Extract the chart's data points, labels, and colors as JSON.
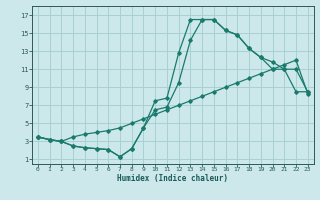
{
  "xlabel": "Humidex (Indice chaleur)",
  "background_color": "#cde8ea",
  "grid_color": "#a8d0d3",
  "line_color": "#1a7a6e",
  "xlim": [
    -0.5,
    23.5
  ],
  "ylim": [
    0.5,
    18
  ],
  "xticks": [
    0,
    1,
    2,
    3,
    4,
    5,
    6,
    7,
    8,
    9,
    10,
    11,
    12,
    13,
    14,
    15,
    16,
    17,
    18,
    19,
    20,
    21,
    22,
    23
  ],
  "yticks": [
    1,
    3,
    5,
    7,
    9,
    11,
    13,
    15,
    17
  ],
  "line1_x": [
    0,
    1,
    2,
    3,
    4,
    5,
    6,
    7,
    8,
    9,
    10,
    11,
    12,
    13,
    14,
    15,
    16,
    17,
    18,
    19,
    20,
    21,
    22,
    23
  ],
  "line1_y": [
    3.5,
    3.2,
    3.0,
    2.5,
    2.3,
    2.2,
    2.1,
    1.3,
    2.2,
    4.5,
    7.5,
    7.8,
    12.8,
    16.5,
    16.5,
    16.5,
    15.3,
    14.8,
    13.3,
    12.3,
    11.0,
    11.0,
    8.5,
    8.5
  ],
  "line2_x": [
    0,
    1,
    2,
    3,
    4,
    5,
    6,
    7,
    8,
    9,
    10,
    11,
    12,
    13,
    14,
    15,
    16,
    17,
    18,
    19,
    20,
    21,
    22,
    23
  ],
  "line2_y": [
    3.5,
    3.2,
    3.0,
    2.5,
    2.3,
    2.2,
    2.1,
    1.3,
    2.2,
    4.5,
    6.5,
    6.8,
    9.5,
    14.2,
    16.5,
    16.5,
    15.3,
    14.8,
    13.3,
    12.3,
    11.8,
    11.0,
    11.0,
    8.5
  ],
  "line3_x": [
    0,
    1,
    2,
    3,
    4,
    5,
    6,
    7,
    8,
    9,
    10,
    11,
    12,
    13,
    14,
    15,
    16,
    17,
    18,
    19,
    20,
    21,
    22,
    23
  ],
  "line3_y": [
    3.5,
    3.2,
    3.0,
    3.5,
    3.8,
    4.0,
    4.2,
    4.5,
    5.0,
    5.5,
    6.0,
    6.5,
    7.0,
    7.5,
    8.0,
    8.5,
    9.0,
    9.5,
    10.0,
    10.5,
    11.0,
    11.5,
    12.0,
    8.3
  ]
}
